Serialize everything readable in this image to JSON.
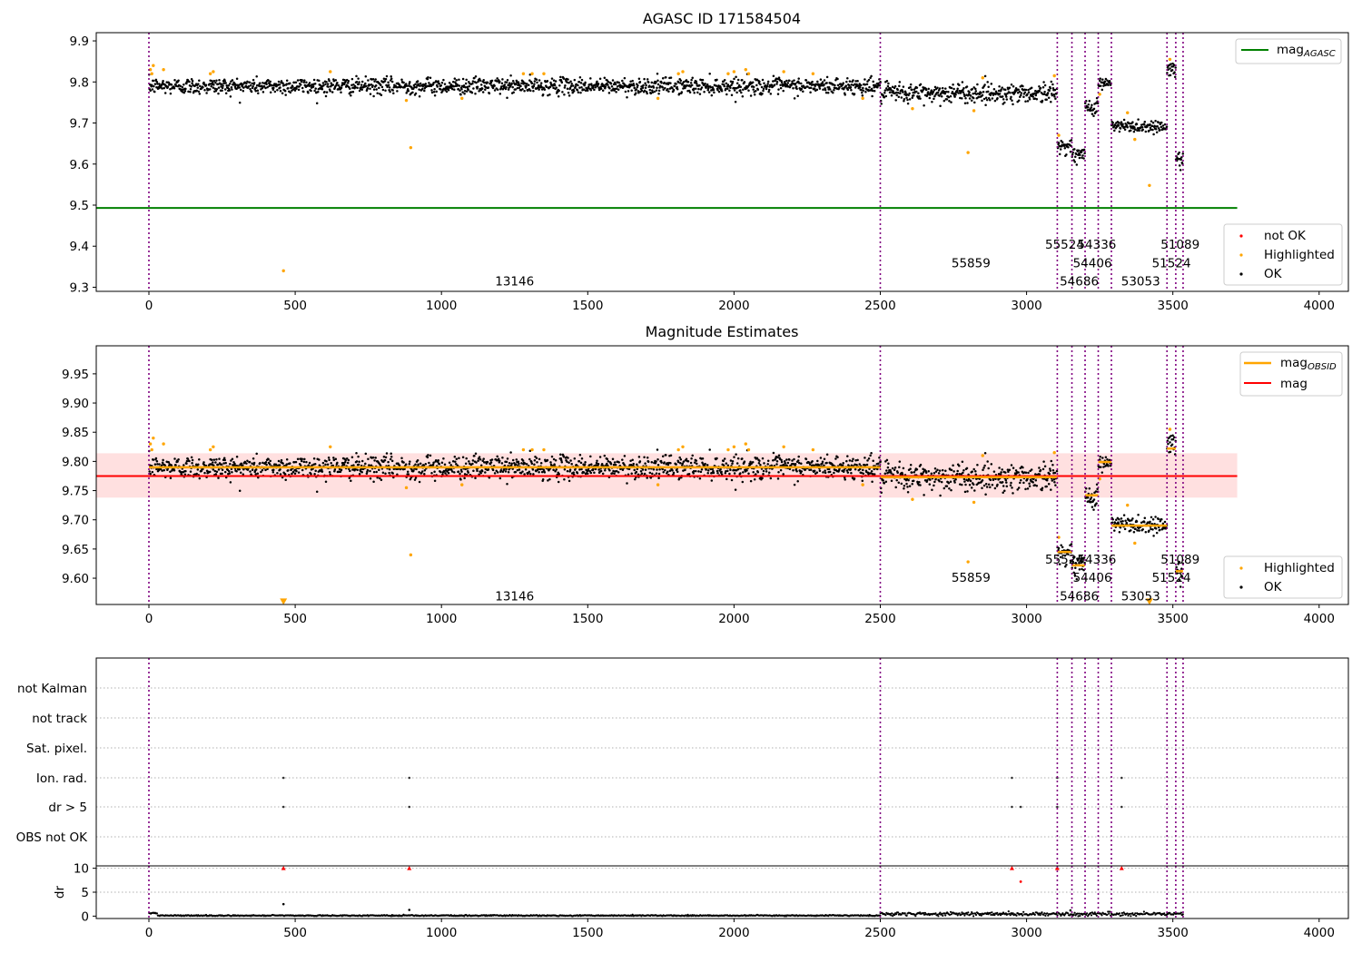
{
  "chart_data": [
    {
      "type": "scatter",
      "title": "AGASC ID 171584504",
      "xlim": [
        -180,
        4100
      ],
      "ylim": [
        9.29,
        9.92
      ],
      "xticks": [
        0,
        500,
        1000,
        1500,
        2000,
        2500,
        3000,
        3500,
        4000
      ],
      "yticks": [
        9.3,
        9.4,
        9.5,
        9.6,
        9.7,
        9.8,
        9.9
      ],
      "obs_boundaries": [
        0,
        2500,
        3105,
        3155,
        3200,
        3245,
        3290,
        3480,
        3510,
        3535
      ],
      "segments": [
        {
          "x": [
            0,
            2500
          ],
          "y": 9.79,
          "spread": 0.01
        },
        {
          "x": [
            2500,
            3105
          ],
          "y": 9.773,
          "spread": 0.012
        },
        {
          "x": [
            3105,
            3155
          ],
          "y": 9.645,
          "spread": 0.008
        },
        {
          "x": [
            3155,
            3200
          ],
          "y": 9.622,
          "spread": 0.01
        },
        {
          "x": [
            3200,
            3245
          ],
          "y": 9.74,
          "spread": 0.01
        },
        {
          "x": [
            3245,
            3290
          ],
          "y": 9.797,
          "spread": 0.008
        },
        {
          "x": [
            3290,
            3480
          ],
          "y": 9.692,
          "spread": 0.008
        },
        {
          "x": [
            3480,
            3510
          ],
          "y": 9.828,
          "spread": 0.01
        },
        {
          "x": [
            3510,
            3535
          ],
          "y": 9.612,
          "spread": 0.01
        }
      ],
      "highlighted_points": [
        {
          "x": 5,
          "y": 9.83
        },
        {
          "x": 10,
          "y": 9.82
        },
        {
          "x": 15,
          "y": 9.84
        },
        {
          "x": 50,
          "y": 9.83
        },
        {
          "x": 210,
          "y": 9.82
        },
        {
          "x": 220,
          "y": 9.825
        },
        {
          "x": 460,
          "y": 9.34
        },
        {
          "x": 620,
          "y": 9.825
        },
        {
          "x": 880,
          "y": 9.755
        },
        {
          "x": 895,
          "y": 9.64
        },
        {
          "x": 1070,
          "y": 9.76
        },
        {
          "x": 1280,
          "y": 9.82
        },
        {
          "x": 1310,
          "y": 9.82
        },
        {
          "x": 1350,
          "y": 9.82
        },
        {
          "x": 1740,
          "y": 9.76
        },
        {
          "x": 1810,
          "y": 9.82
        },
        {
          "x": 1825,
          "y": 9.825
        },
        {
          "x": 1980,
          "y": 9.82
        },
        {
          "x": 2000,
          "y": 9.825
        },
        {
          "x": 2040,
          "y": 9.83
        },
        {
          "x": 2050,
          "y": 9.82
        },
        {
          "x": 2170,
          "y": 9.825
        },
        {
          "x": 2270,
          "y": 9.82
        },
        {
          "x": 2440,
          "y": 9.76
        },
        {
          "x": 2610,
          "y": 9.735
        },
        {
          "x": 2800,
          "y": 9.628
        },
        {
          "x": 2820,
          "y": 9.73
        },
        {
          "x": 2850,
          "y": 9.81
        },
        {
          "x": 3095,
          "y": 9.815
        },
        {
          "x": 3110,
          "y": 9.67
        },
        {
          "x": 3250,
          "y": 9.77
        },
        {
          "x": 3345,
          "y": 9.725
        },
        {
          "x": 3370,
          "y": 9.66
        },
        {
          "x": 3420,
          "y": 9.548
        },
        {
          "x": 3490,
          "y": 9.855
        }
      ],
      "reference_line": {
        "name": "mag_AGASC",
        "y": 9.493,
        "x": [
          -180,
          3720
        ],
        "color": "#008000"
      },
      "annotations": [
        {
          "text": "13146",
          "x": 1250,
          "y": 9.315
        },
        {
          "text": "55859",
          "x": 2810,
          "y": 9.36
        },
        {
          "text": "55524",
          "x": 3130,
          "y": 9.405
        },
        {
          "text": "54336",
          "x": 3240,
          "y": 9.405
        },
        {
          "text": "54406",
          "x": 3225,
          "y": 9.36
        },
        {
          "text": "54686",
          "x": 3180,
          "y": 9.315
        },
        {
          "text": "53053",
          "x": 3390,
          "y": 9.315
        },
        {
          "text": "51089",
          "x": 3525,
          "y": 9.405
        },
        {
          "text": "51524",
          "x": 3495,
          "y": 9.36
        }
      ],
      "legend_top": {
        "position": "top-right",
        "entries": [
          {
            "label": "mag",
            "sub": "AGASC",
            "color": "#008000"
          }
        ]
      },
      "legend_bottom": {
        "position": "bottom-right",
        "entries": [
          {
            "label": "not OK",
            "color": "#ff0000"
          },
          {
            "label": "Highlighted",
            "color": "#ffa500"
          },
          {
            "label": "OK",
            "color": "#000000"
          }
        ]
      }
    },
    {
      "type": "scatter",
      "title": "Magnitude Estimates",
      "xlim": [
        -180,
        4100
      ],
      "ylim": [
        9.555,
        9.998
      ],
      "xticks": [
        0,
        500,
        1000,
        1500,
        2000,
        2500,
        3000,
        3500,
        4000
      ],
      "yticks": [
        9.6,
        9.65,
        9.7,
        9.75,
        9.8,
        9.85,
        9.9,
        9.95
      ],
      "mag_line": {
        "y": 9.775,
        "band": [
          9.738,
          9.814
        ],
        "x": [
          -180,
          3720
        ],
        "color": "#ff0000"
      },
      "obsid_mag": [
        {
          "x": [
            0,
            2500
          ],
          "y": 9.79
        },
        {
          "x": [
            2500,
            3105
          ],
          "y": 9.773
        },
        {
          "x": [
            3105,
            3155
          ],
          "y": 9.645
        },
        {
          "x": [
            3155,
            3200
          ],
          "y": 9.622
        },
        {
          "x": [
            3200,
            3245
          ],
          "y": 9.742
        },
        {
          "x": [
            3245,
            3290
          ],
          "y": 9.799
        },
        {
          "x": [
            3290,
            3480
          ],
          "y": 9.69
        },
        {
          "x": [
            3480,
            3510
          ],
          "y": 9.822
        },
        {
          "x": [
            3510,
            3535
          ],
          "y": 9.612
        }
      ],
      "triangle_markers": [
        {
          "x": 460,
          "y": 9.559
        },
        {
          "x": 3420,
          "y": 9.559
        }
      ],
      "annotations": [
        {
          "text": "13146",
          "x": 1250,
          "y": 9.57
        },
        {
          "text": "55859",
          "x": 2810,
          "y": 9.602
        },
        {
          "text": "55524",
          "x": 3130,
          "y": 9.633
        },
        {
          "text": "54336",
          "x": 3240,
          "y": 9.633
        },
        {
          "text": "54406",
          "x": 3225,
          "y": 9.602
        },
        {
          "text": "54686",
          "x": 3180,
          "y": 9.57
        },
        {
          "text": "53053",
          "x": 3390,
          "y": 9.57
        },
        {
          "text": "51089",
          "x": 3525,
          "y": 9.633
        },
        {
          "text": "51524",
          "x": 3495,
          "y": 9.602
        }
      ],
      "legend_top": {
        "position": "top-right",
        "entries": [
          {
            "label": "mag",
            "sub": "OBSID",
            "color": "#ffa500"
          },
          {
            "label": "mag",
            "sub": "",
            "color": "#ff0000"
          }
        ]
      },
      "legend_bottom": {
        "position": "bottom-right",
        "entries": [
          {
            "label": "Highlighted",
            "color": "#ffa500"
          },
          {
            "label": "OK",
            "color": "#000000"
          }
        ]
      }
    },
    {
      "type": "scatter",
      "categories": [
        "not Kalman",
        "not track",
        "Sat. pixel.",
        "Ion. rad.",
        "dr > 5",
        "OBS not OK"
      ],
      "flag_points": {
        "Ion. rad.": [
          460,
          890,
          2950,
          3105,
          3325
        ],
        "dr > 5": [
          460,
          890,
          2950,
          2980,
          3105,
          3325
        ]
      },
      "xlim": [
        -180,
        4100
      ]
    },
    {
      "type": "scatter",
      "ylabel": "dr",
      "xlim": [
        -180,
        4100
      ],
      "ylim": [
        -0.5,
        10.5
      ],
      "yticks": [
        0,
        5,
        10
      ],
      "xticks": [
        0,
        500,
        1000,
        1500,
        2000,
        2500,
        3000,
        3500,
        4000
      ],
      "capped_markers": [
        {
          "x": 460,
          "y": 10
        },
        {
          "x": 890,
          "y": 10
        },
        {
          "x": 2950,
          "y": 10
        },
        {
          "x": 3105,
          "y": 10
        },
        {
          "x": 3325,
          "y": 10
        }
      ],
      "red_points": [
        {
          "x": 2980,
          "y": 7.2
        }
      ],
      "outliers": [
        {
          "x": 460,
          "y": 2.5
        },
        {
          "x": 890,
          "y": 1.3
        },
        {
          "x": 3150,
          "y": 1.2
        }
      ]
    }
  ],
  "colors": {
    "ok": "#000000",
    "highlighted": "#ffa500",
    "not_ok": "#ff0000",
    "boundary": "#800080"
  }
}
